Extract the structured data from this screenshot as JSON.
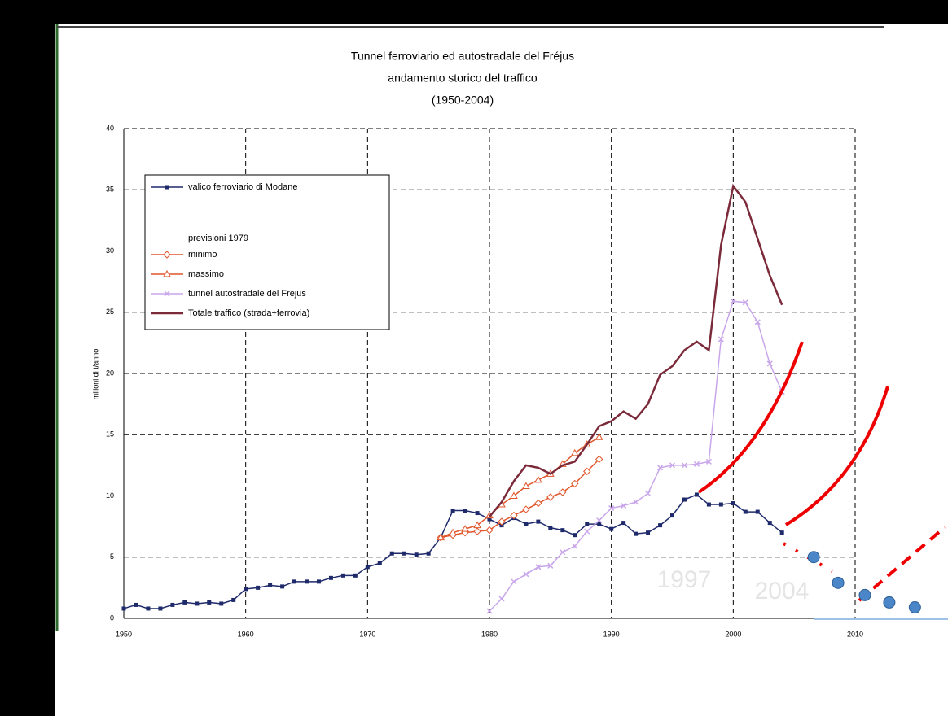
{
  "chart_data": {
    "type": "line",
    "title": [
      "Tunnel ferroviario ed autostradale del Fréjus",
      "andamento storico del traffico",
      "(1950-2004)"
    ],
    "ylabel": "milioni di t/anno",
    "xlim": [
      1950,
      2010
    ],
    "xticks": [
      1950,
      1960,
      1970,
      1980,
      1990,
      2000,
      2010
    ],
    "ylim": [
      0,
      40
    ],
    "yticks": [
      0,
      5,
      10,
      15,
      20,
      25,
      30,
      35,
      40
    ],
    "grid": true,
    "legend_heading": "previsioni 1979",
    "annotations": [
      "1997",
      "2004"
    ],
    "series": [
      {
        "name": "valico ferroviario di Modane",
        "color": "#1f2a6b",
        "marker": "square",
        "x": [
          1950,
          1951,
          1952,
          1953,
          1954,
          1955,
          1956,
          1957,
          1958,
          1959,
          1960,
          1961,
          1962,
          1963,
          1964,
          1965,
          1966,
          1967,
          1968,
          1969,
          1970,
          1971,
          1972,
          1973,
          1974,
          1975,
          1976,
          1977,
          1978,
          1979,
          1980,
          1981,
          1982,
          1983,
          1984,
          1985,
          1986,
          1987,
          1988,
          1989,
          1990,
          1991,
          1992,
          1993,
          1994,
          1995,
          1996,
          1997,
          1998,
          1999,
          2000,
          2001,
          2002,
          2003,
          2004
        ],
        "values": [
          0.8,
          1.1,
          0.8,
          0.8,
          1.1,
          1.3,
          1.2,
          1.3,
          1.2,
          1.5,
          2.4,
          2.5,
          2.7,
          2.6,
          3.0,
          3.0,
          3.0,
          3.3,
          3.5,
          3.5,
          4.2,
          4.5,
          5.3,
          5.3,
          5.2,
          5.3,
          6.6,
          8.8,
          8.8,
          8.6,
          8.1,
          7.6,
          8.2,
          7.7,
          7.9,
          7.4,
          7.2,
          6.8,
          7.7,
          7.7,
          7.3,
          7.8,
          6.9,
          7.0,
          7.6,
          8.4,
          9.7,
          10.1,
          9.3,
          9.3,
          9.4,
          8.7,
          8.7,
          7.8,
          7.0
        ]
      },
      {
        "name": "minimo",
        "color": "#e0552a",
        "marker": "diamond",
        "x": [
          1976,
          1977,
          1978,
          1979,
          1980,
          1981,
          1982,
          1983,
          1984,
          1985,
          1986,
          1987,
          1988,
          1989
        ],
        "values": [
          6.6,
          6.8,
          7.0,
          7.1,
          7.2,
          7.9,
          8.4,
          8.9,
          9.4,
          9.9,
          10.3,
          11.0,
          12.0,
          13.0
        ]
      },
      {
        "name": "massimo",
        "color": "#e0552a",
        "marker": "triangle",
        "x": [
          1976,
          1977,
          1978,
          1979,
          1980,
          1981,
          1982,
          1983,
          1984,
          1985,
          1986,
          1987,
          1988,
          1989
        ],
        "values": [
          6.6,
          7.0,
          7.3,
          7.6,
          8.4,
          9.3,
          10.0,
          10.8,
          11.3,
          11.8,
          12.6,
          13.5,
          14.2,
          14.8
        ]
      },
      {
        "name": "tunnel autostradale del Fréjus",
        "color": "#c9a6ea",
        "marker": "x",
        "x": [
          1980,
          1981,
          1982,
          1983,
          1984,
          1985,
          1986,
          1987,
          1988,
          1989,
          1990,
          1991,
          1992,
          1993,
          1994,
          1995,
          1996,
          1997,
          1998,
          1999,
          2000,
          2001,
          2002,
          2003,
          2004
        ],
        "values": [
          0.6,
          1.6,
          3.0,
          3.6,
          4.2,
          4.3,
          5.4,
          5.9,
          7.1,
          8.0,
          9.0,
          9.2,
          9.5,
          10.2,
          12.3,
          12.5,
          12.5,
          12.6,
          12.8,
          22.8,
          25.9,
          25.8,
          24.2,
          20.8,
          18.5
        ]
      },
      {
        "name": "Totale traffico (strada+ferrovia)",
        "color": "#7b2a3a",
        "marker": "none",
        "x": [
          1980,
          1981,
          1982,
          1983,
          1984,
          1985,
          1986,
          1987,
          1988,
          1989,
          1990,
          1991,
          1992,
          1993,
          1994,
          1995,
          1996,
          1997,
          1998,
          1999,
          2000,
          2001,
          2002,
          2003,
          2004
        ],
        "values": [
          8.3,
          9.5,
          11.2,
          12.5,
          12.3,
          11.8,
          12.5,
          12.8,
          14.2,
          15.7,
          16.1,
          16.9,
          16.3,
          17.5,
          19.9,
          20.6,
          21.9,
          22.6,
          21.9,
          30.5,
          35.3,
          34.0,
          31.0,
          28.0,
          25.6
        ]
      }
    ],
    "projection": {
      "color": "#4a86c8",
      "x": [
        2006.6,
        2008.6,
        2010.8,
        2012.8,
        2014.9
      ],
      "values": [
        5.0,
        2.9,
        1.9,
        1.3,
        0.9
      ]
    }
  }
}
